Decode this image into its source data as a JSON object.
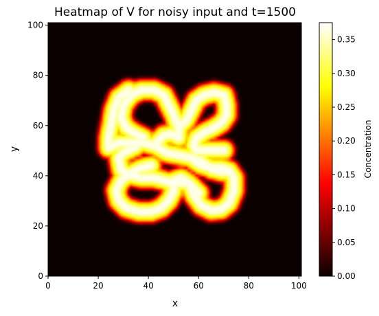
{
  "chart_data": {
    "type": "heatmap",
    "title": "Heatmap of V for noisy input and t=1500",
    "xlabel": "x",
    "ylabel": "y",
    "xlim": [
      0,
      101
    ],
    "ylim": [
      0,
      101
    ],
    "x_ticks": [
      0,
      20,
      40,
      60,
      80,
      100
    ],
    "y_ticks": [
      0,
      20,
      40,
      60,
      80,
      100
    ],
    "grid_size": 101,
    "colormap": "hot",
    "colorbar": {
      "label": "Concentration",
      "vmin": 0.0,
      "vmax": 0.375,
      "ticks": [
        "0.00",
        "0.05",
        "0.10",
        "0.15",
        "0.20",
        "0.25",
        "0.30",
        "0.35"
      ]
    },
    "pattern": {
      "description_values": "ring-like labyrinth of V concentration peaking near 0.37 inside band, ~0 elsewhere",
      "band_peak": 0.37,
      "band_half_width": 3.2,
      "paths": [
        [
          [
            24,
            51
          ],
          [
            28,
            53
          ],
          [
            33,
            53
          ],
          [
            38,
            53
          ],
          [
            43,
            51.5
          ],
          [
            47,
            49
          ],
          [
            52,
            48
          ],
          [
            57,
            47
          ],
          [
            61,
            45.5
          ],
          [
            65,
            42.5
          ],
          [
            69,
            41.5
          ],
          [
            72,
            41.5
          ]
        ],
        [
          [
            35,
            51.5
          ],
          [
            30,
            49
          ],
          [
            28,
            47
          ],
          [
            29,
            42
          ],
          [
            33,
            40
          ],
          [
            37,
            39
          ],
          [
            42,
            39
          ],
          [
            46,
            38
          ],
          [
            49,
            37
          ],
          [
            53,
            37
          ],
          [
            56,
            37
          ],
          [
            58,
            35
          ],
          [
            60,
            33
          ]
        ],
        [
          [
            41,
            44
          ],
          [
            37,
            43
          ],
          [
            33,
            41
          ],
          [
            29,
            38
          ],
          [
            27,
            34
          ],
          [
            28,
            30
          ],
          [
            31,
            27
          ],
          [
            36,
            25.5
          ],
          [
            41,
            25.5
          ],
          [
            45,
            27
          ],
          [
            48,
            30
          ],
          [
            50,
            34
          ],
          [
            50,
            38
          ],
          [
            53,
            39
          ],
          [
            56,
            37
          ],
          [
            58,
            32
          ],
          [
            61,
            28
          ],
          [
            65,
            26
          ],
          [
            69,
            26.5
          ],
          [
            72,
            29
          ],
          [
            74,
            34
          ],
          [
            74,
            39
          ],
          [
            72,
            42
          ],
          [
            69,
            43
          ],
          [
            65,
            43
          ],
          [
            61,
            44
          ],
          [
            58,
            46
          ]
        ],
        [
          [
            38,
            55
          ],
          [
            34,
            57
          ],
          [
            31,
            59
          ],
          [
            29,
            63
          ],
          [
            30,
            68
          ],
          [
            33,
            72
          ],
          [
            37,
            74
          ],
          [
            42,
            74
          ],
          [
            46,
            72
          ],
          [
            48,
            68
          ],
          [
            50,
            64
          ],
          [
            51,
            61
          ],
          [
            53,
            60
          ],
          [
            55,
            62
          ],
          [
            57,
            66
          ],
          [
            59,
            70
          ],
          [
            62,
            72
          ],
          [
            66,
            73
          ],
          [
            70,
            72
          ],
          [
            71,
            68
          ],
          [
            71,
            64
          ],
          [
            69,
            61
          ],
          [
            66,
            59
          ],
          [
            62,
            57
          ],
          [
            59,
            55
          ],
          [
            58,
            52
          ],
          [
            59,
            50
          ],
          [
            63,
            50
          ],
          [
            67,
            50
          ],
          [
            70,
            50
          ]
        ],
        [
          [
            24,
            51
          ],
          [
            24,
            55
          ],
          [
            25,
            60
          ],
          [
            26,
            66
          ],
          [
            28,
            71
          ],
          [
            32,
            74
          ]
        ],
        [
          [
            43,
            53
          ],
          [
            46,
            56
          ],
          [
            49,
            56.5
          ],
          [
            52,
            55
          ],
          [
            52,
            60
          ]
        ]
      ]
    }
  }
}
